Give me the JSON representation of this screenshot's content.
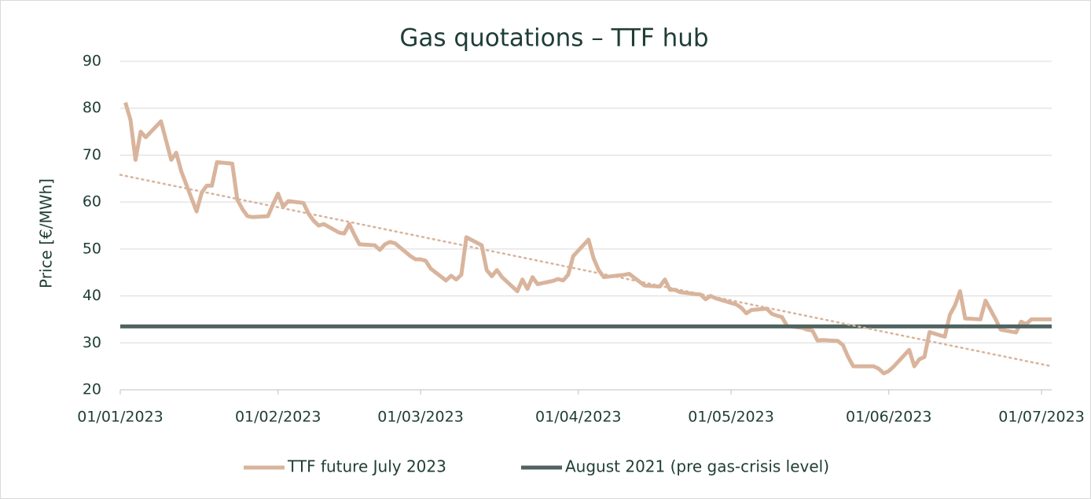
{
  "chart_data": {
    "type": "line",
    "title": "Gas quotations – TTF hub",
    "y_label": "Price [€/MWh]",
    "xlim": [
      "2023-01-01",
      "2023-07-03"
    ],
    "xticks": [
      {
        "value": "2023-01-01",
        "label": "01/01/2023"
      },
      {
        "value": "2023-02-01",
        "label": "01/02/2023"
      },
      {
        "value": "2023-03-01",
        "label": "01/03/2023"
      },
      {
        "value": "2023-04-01",
        "label": "01/04/2023"
      },
      {
        "value": "2023-05-01",
        "label": "01/05/2023"
      },
      {
        "value": "2023-06-01",
        "label": "01/06/2023"
      },
      {
        "value": "2023-07-01",
        "label": "01/07/2023"
      }
    ],
    "ylim": [
      20,
      90
    ],
    "yticks": [
      20,
      30,
      40,
      50,
      60,
      70,
      80,
      90
    ],
    "grid": true,
    "legend": "bottom",
    "series": [
      {
        "name": "TTF future July 2023",
        "color": "#d9b49c",
        "x": [
          "2023-01-02",
          "2023-01-03",
          "2023-01-04",
          "2023-01-05",
          "2023-01-06",
          "2023-01-09",
          "2023-01-11",
          "2023-01-12",
          "2023-01-13",
          "2023-01-16",
          "2023-01-17",
          "2023-01-18",
          "2023-01-19",
          "2023-01-20",
          "2023-01-23",
          "2023-01-24",
          "2023-01-25",
          "2023-01-26",
          "2023-01-27",
          "2023-01-30",
          "2023-01-31",
          "2023-02-01",
          "2023-02-02",
          "2023-02-03",
          "2023-02-06",
          "2023-02-07",
          "2023-02-08",
          "2023-02-09",
          "2023-02-10",
          "2023-02-13",
          "2023-02-14",
          "2023-02-15",
          "2023-02-16",
          "2023-02-17",
          "2023-02-20",
          "2023-02-21",
          "2023-02-22",
          "2023-02-23",
          "2023-02-24",
          "2023-02-27",
          "2023-02-28",
          "2023-03-01",
          "2023-03-02",
          "2023-03-03",
          "2023-03-06",
          "2023-03-07",
          "2023-03-08",
          "2023-03-09",
          "2023-03-10",
          "2023-03-13",
          "2023-03-14",
          "2023-03-15",
          "2023-03-16",
          "2023-03-17",
          "2023-03-20",
          "2023-03-21",
          "2023-03-22",
          "2023-03-23",
          "2023-03-24",
          "2023-03-27",
          "2023-03-28",
          "2023-03-29",
          "2023-03-30",
          "2023-03-31",
          "2023-04-03",
          "2023-04-04",
          "2023-04-05",
          "2023-04-06",
          "2023-04-10",
          "2023-04-11",
          "2023-04-14",
          "2023-04-17",
          "2023-04-18",
          "2023-04-19",
          "2023-04-20",
          "2023-04-21",
          "2023-04-24",
          "2023-04-25",
          "2023-04-26",
          "2023-04-27",
          "2023-04-28",
          "2023-05-01",
          "2023-05-02",
          "2023-05-03",
          "2023-05-04",
          "2023-05-05",
          "2023-05-08",
          "2023-05-09",
          "2023-05-10",
          "2023-05-11",
          "2023-05-12",
          "2023-05-15",
          "2023-05-16",
          "2023-05-17",
          "2023-05-18",
          "2023-05-19",
          "2023-05-22",
          "2023-05-23",
          "2023-05-24",
          "2023-05-25",
          "2023-05-26",
          "2023-05-29",
          "2023-05-30",
          "2023-05-31",
          "2023-06-01",
          "2023-06-02",
          "2023-06-05",
          "2023-06-06",
          "2023-06-07",
          "2023-06-08",
          "2023-06-09",
          "2023-06-12",
          "2023-06-13",
          "2023-06-14",
          "2023-06-15",
          "2023-06-16",
          "2023-06-19",
          "2023-06-20",
          "2023-06-21",
          "2023-06-22",
          "2023-06-23",
          "2023-06-26",
          "2023-06-27",
          "2023-06-28",
          "2023-06-29",
          "2023-06-30",
          "2023-07-03"
        ],
        "values": [
          81.2,
          77.5,
          69,
          75,
          73.8,
          77.2,
          69,
          70.5,
          66.5,
          58,
          62,
          63.5,
          63.5,
          68.5,
          68.2,
          60.5,
          58.5,
          57,
          56.8,
          57,
          59.5,
          61.8,
          59,
          60.2,
          59.8,
          57.5,
          56,
          55,
          55.3,
          53.5,
          53.3,
          55.3,
          53,
          51,
          50.8,
          49.8,
          51,
          51.5,
          51.2,
          48.5,
          47.8,
          47.8,
          47.5,
          45.8,
          43.3,
          44.3,
          43.5,
          44.5,
          52.5,
          50.8,
          45.5,
          44.2,
          45.5,
          44,
          41,
          43.5,
          41.5,
          44,
          42.5,
          43.2,
          43.6,
          43.3,
          44.5,
          48.5,
          52,
          48,
          45.5,
          44,
          44.5,
          44.7,
          42.2,
          42,
          43.5,
          41.3,
          41.3,
          40.8,
          40.4,
          40.3,
          39.3,
          40,
          39.5,
          38.5,
          38.2,
          37.5,
          36.3,
          37,
          37.3,
          36.2,
          35.8,
          35.5,
          33.6,
          33.2,
          32.8,
          32.6,
          30.5,
          30.6,
          30.4,
          29.5,
          27,
          25,
          25,
          25,
          24.5,
          23.5,
          24,
          25,
          28.5,
          25,
          26.5,
          27,
          32.3,
          31.3,
          36,
          38,
          41,
          35.2,
          35,
          39,
          37,
          35,
          32.8,
          32.2,
          34.5,
          34,
          35,
          35,
          35
        ]
      },
      {
        "name": "August 2021 (pre gas-crisis level)",
        "color": "#4f6461",
        "x": [
          "2023-01-01",
          "2023-07-03"
        ],
        "values": [
          33.5,
          33.5
        ]
      }
    ],
    "trendline": {
      "color": "#d9b49c",
      "x": [
        "2023-01-01",
        "2023-07-03"
      ],
      "values": [
        65.8,
        25
      ]
    }
  }
}
